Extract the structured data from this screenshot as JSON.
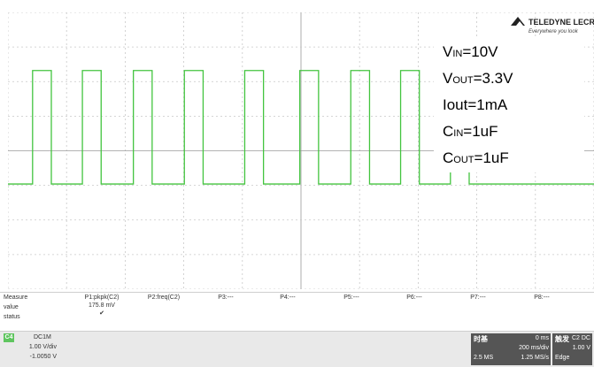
{
  "colors": {
    "trace": "#43c43f",
    "grid": "#c8c8c8",
    "axis": "#9a9a9a"
  },
  "logo": {
    "brand": "TELEDYNE LECROY",
    "tagline": "Everywhere you look"
  },
  "params": [
    {
      "main": "V",
      "sub": "IN",
      "value": "=10V"
    },
    {
      "main": "V",
      "sub": "OUT",
      "value": "=3.3V"
    },
    {
      "main": "Iout",
      "sub": "",
      "value": "=1mA"
    },
    {
      "main": "C",
      "sub": "IN",
      "value": "=1uF"
    },
    {
      "main": "C",
      "sub": "OUT",
      "value": "=1uF"
    }
  ],
  "channel_marker": "C4",
  "measure": {
    "labels": [
      "Measure",
      "value",
      "status"
    ],
    "columns": [
      {
        "name": "P1:pkpk(C2)",
        "value": "175.8 mV",
        "status": "✔"
      },
      {
        "name": "P2:freq(C2)",
        "value": "",
        "status": ""
      },
      {
        "name": "P3:---",
        "value": "",
        "status": ""
      },
      {
        "name": "P4:---",
        "value": "",
        "status": ""
      },
      {
        "name": "P5:---",
        "value": "",
        "status": ""
      },
      {
        "name": "P6:---",
        "value": "",
        "status": ""
      },
      {
        "name": "P7:---",
        "value": "",
        "status": ""
      },
      {
        "name": "P8:---",
        "value": "",
        "status": ""
      }
    ]
  },
  "channel": {
    "tag": "C4",
    "coupling": "DC1M",
    "scale": "1.00 V/div",
    "offset": "-1.0050 V"
  },
  "timebase": {
    "label": "时基",
    "delay": "0 ms",
    "tdiv": "200 ms/div",
    "samples": "2.5 MS",
    "rate": "1.25 MS/s"
  },
  "trigger": {
    "label": "触发",
    "source": "C2 DC",
    "level": "1.00 V",
    "mode": "Edge"
  },
  "chart_data": {
    "type": "line",
    "title": "",
    "xlabel": "",
    "ylabel": "",
    "series": [
      {
        "name": "",
        "color": "#43c43f",
        "pulses_rise_fraction": [
          0.042,
          0.127,
          0.214,
          0.301,
          0.404,
          0.498,
          0.585,
          0.67,
          0.755
        ],
        "pulse_width_fraction": 0.032,
        "high_level_fraction": 0.21,
        "low_level_fraction": 0.62
      }
    ]
  }
}
